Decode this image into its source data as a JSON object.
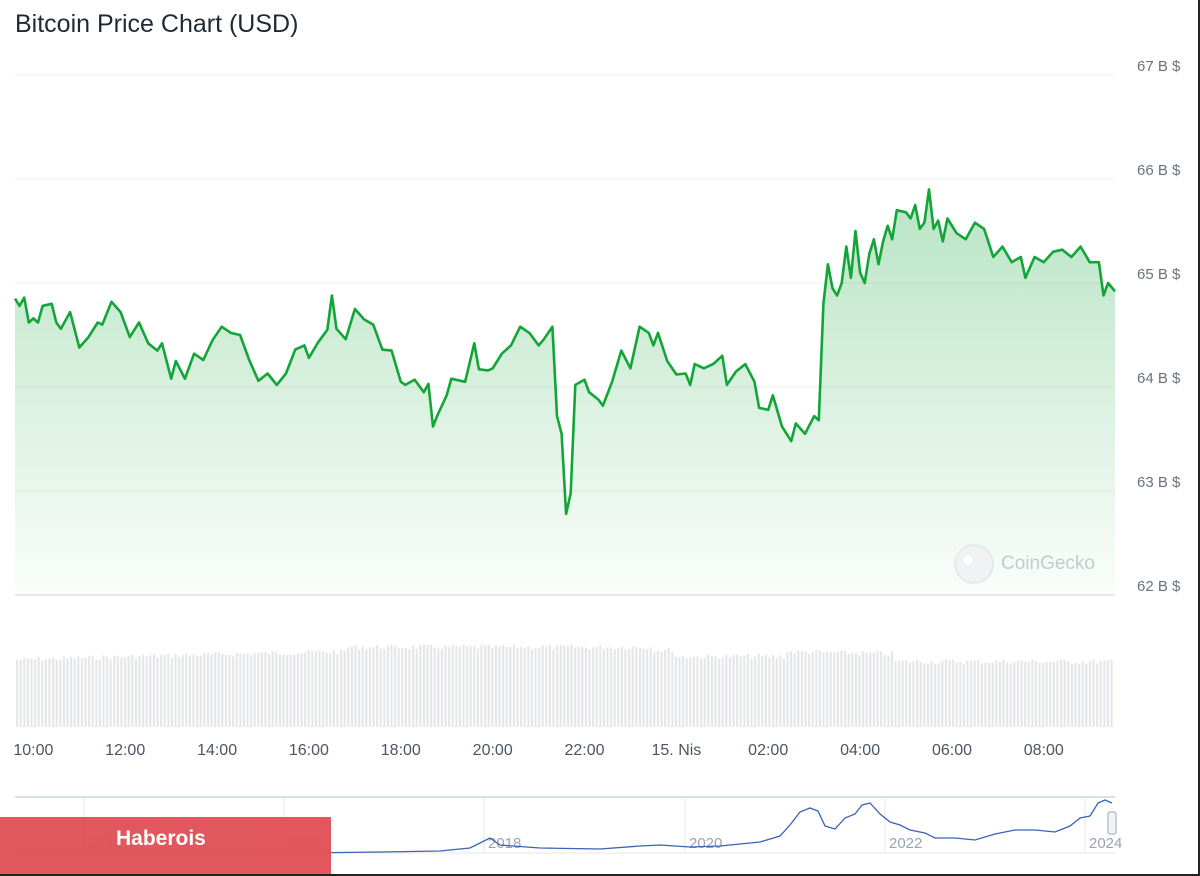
{
  "chart_title": "Bitcoin Price Chart (USD)",
  "watermark": "CoinGecko",
  "brand_label": "Haberois",
  "colors": {
    "line": "#13a538",
    "volume": "#e5e7eb",
    "navigator": "#3b63b5",
    "brand": "#e05258"
  },
  "chart_data": {
    "type": "line",
    "y_ticks": [
      "67 B $",
      "66 B $",
      "65 B $",
      "64 B $",
      "63 B $",
      "62 B $"
    ],
    "ylim": [
      62,
      67
    ],
    "x_ticks": [
      "10:00",
      "12:00",
      "14:00",
      "16:00",
      "18:00",
      "20:00",
      "22:00",
      "15. Nis",
      "02:00",
      "04:00",
      "06:00",
      "08:00"
    ],
    "xlim": [
      9.6,
      33.55
    ],
    "x_tick_positions": [
      10,
      12,
      14,
      16,
      18,
      20,
      22,
      24,
      26,
      28,
      30,
      32
    ],
    "series": [
      {
        "points": [
          [
            9.6,
            64.85
          ],
          [
            9.7,
            64.78
          ],
          [
            9.8,
            64.86
          ],
          [
            9.9,
            64.62
          ],
          [
            10.0,
            64.66
          ],
          [
            10.1,
            64.62
          ],
          [
            10.2,
            64.78
          ],
          [
            10.4,
            64.8
          ],
          [
            10.5,
            64.62
          ],
          [
            10.6,
            64.56
          ],
          [
            10.8,
            64.72
          ],
          [
            11.0,
            64.38
          ],
          [
            11.2,
            64.48
          ],
          [
            11.4,
            64.62
          ],
          [
            11.5,
            64.6
          ],
          [
            11.7,
            64.82
          ],
          [
            11.9,
            64.72
          ],
          [
            12.1,
            64.48
          ],
          [
            12.3,
            64.62
          ],
          [
            12.5,
            64.42
          ],
          [
            12.7,
            64.35
          ],
          [
            12.8,
            64.42
          ],
          [
            13.0,
            64.08
          ],
          [
            13.1,
            64.25
          ],
          [
            13.3,
            64.08
          ],
          [
            13.5,
            64.32
          ],
          [
            13.7,
            64.26
          ],
          [
            13.9,
            64.45
          ],
          [
            14.1,
            64.58
          ],
          [
            14.3,
            64.52
          ],
          [
            14.5,
            64.5
          ],
          [
            14.7,
            64.26
          ],
          [
            14.9,
            64.06
          ],
          [
            15.1,
            64.13
          ],
          [
            15.3,
            64.02
          ],
          [
            15.5,
            64.13
          ],
          [
            15.7,
            64.36
          ],
          [
            15.9,
            64.4
          ],
          [
            16.0,
            64.28
          ],
          [
            16.2,
            64.43
          ],
          [
            16.4,
            64.55
          ],
          [
            16.5,
            64.88
          ],
          [
            16.6,
            64.56
          ],
          [
            16.8,
            64.46
          ],
          [
            17.0,
            64.75
          ],
          [
            17.2,
            64.65
          ],
          [
            17.4,
            64.6
          ],
          [
            17.6,
            64.36
          ],
          [
            17.8,
            64.35
          ],
          [
            18.0,
            64.05
          ],
          [
            18.1,
            64.02
          ],
          [
            18.3,
            64.07
          ],
          [
            18.5,
            63.95
          ],
          [
            18.6,
            64.03
          ],
          [
            18.7,
            63.62
          ],
          [
            18.8,
            63.73
          ],
          [
            19.0,
            63.92
          ],
          [
            19.1,
            64.08
          ],
          [
            19.3,
            64.06
          ],
          [
            19.4,
            64.05
          ],
          [
            19.6,
            64.42
          ],
          [
            19.7,
            64.17
          ],
          [
            19.9,
            64.16
          ],
          [
            20.0,
            64.18
          ],
          [
            20.2,
            64.32
          ],
          [
            20.4,
            64.4
          ],
          [
            20.6,
            64.58
          ],
          [
            20.8,
            64.52
          ],
          [
            21.0,
            64.4
          ],
          [
            21.1,
            64.45
          ],
          [
            21.3,
            64.58
          ],
          [
            21.4,
            63.72
          ],
          [
            21.5,
            63.55
          ],
          [
            21.6,
            62.78
          ],
          [
            21.7,
            62.98
          ],
          [
            21.8,
            64.02
          ],
          [
            22.0,
            64.07
          ],
          [
            22.1,
            63.95
          ],
          [
            22.3,
            63.88
          ],
          [
            22.4,
            63.82
          ],
          [
            22.6,
            64.05
          ],
          [
            22.8,
            64.35
          ],
          [
            23.0,
            64.18
          ],
          [
            23.2,
            64.58
          ],
          [
            23.4,
            64.52
          ],
          [
            23.5,
            64.4
          ],
          [
            23.6,
            64.52
          ],
          [
            23.8,
            64.25
          ],
          [
            24.0,
            64.12
          ],
          [
            24.2,
            64.13
          ],
          [
            24.3,
            64.02
          ],
          [
            24.4,
            64.22
          ],
          [
            24.6,
            64.18
          ],
          [
            24.8,
            64.22
          ],
          [
            25.0,
            64.3
          ],
          [
            25.1,
            64.02
          ],
          [
            25.3,
            64.15
          ],
          [
            25.5,
            64.22
          ],
          [
            25.7,
            64.05
          ],
          [
            25.8,
            63.8
          ],
          [
            26.0,
            63.78
          ],
          [
            26.1,
            63.92
          ],
          [
            26.3,
            63.62
          ],
          [
            26.5,
            63.48
          ],
          [
            26.6,
            63.65
          ],
          [
            26.8,
            63.55
          ],
          [
            27.0,
            63.72
          ],
          [
            27.1,
            63.68
          ],
          [
            27.2,
            64.8
          ],
          [
            27.3,
            65.18
          ],
          [
            27.4,
            64.95
          ],
          [
            27.5,
            64.88
          ],
          [
            27.6,
            65.0
          ],
          [
            27.7,
            65.35
          ],
          [
            27.8,
            65.05
          ],
          [
            27.9,
            65.5
          ],
          [
            28.0,
            65.1
          ],
          [
            28.1,
            65.0
          ],
          [
            28.2,
            65.28
          ],
          [
            28.3,
            65.42
          ],
          [
            28.4,
            65.18
          ],
          [
            28.5,
            65.4
          ],
          [
            28.6,
            65.55
          ],
          [
            28.7,
            65.42
          ],
          [
            28.8,
            65.7
          ],
          [
            29.0,
            65.68
          ],
          [
            29.1,
            65.62
          ],
          [
            29.2,
            65.75
          ],
          [
            29.3,
            65.52
          ],
          [
            29.4,
            65.58
          ],
          [
            29.5,
            65.9
          ],
          [
            29.6,
            65.52
          ],
          [
            29.7,
            65.6
          ],
          [
            29.8,
            65.4
          ],
          [
            29.9,
            65.62
          ],
          [
            30.1,
            65.48
          ],
          [
            30.3,
            65.42
          ],
          [
            30.5,
            65.58
          ],
          [
            30.7,
            65.52
          ],
          [
            30.9,
            65.25
          ],
          [
            31.1,
            65.35
          ],
          [
            31.3,
            65.2
          ],
          [
            31.5,
            65.25
          ],
          [
            31.6,
            65.05
          ],
          [
            31.8,
            65.25
          ],
          [
            32.0,
            65.2
          ],
          [
            32.2,
            65.3
          ],
          [
            32.4,
            65.32
          ],
          [
            32.6,
            65.25
          ],
          [
            32.8,
            65.35
          ],
          [
            33.0,
            65.2
          ],
          [
            33.2,
            65.2
          ],
          [
            33.3,
            64.88
          ],
          [
            33.4,
            65.0
          ],
          [
            33.55,
            64.92
          ]
        ]
      }
    ]
  }
}
